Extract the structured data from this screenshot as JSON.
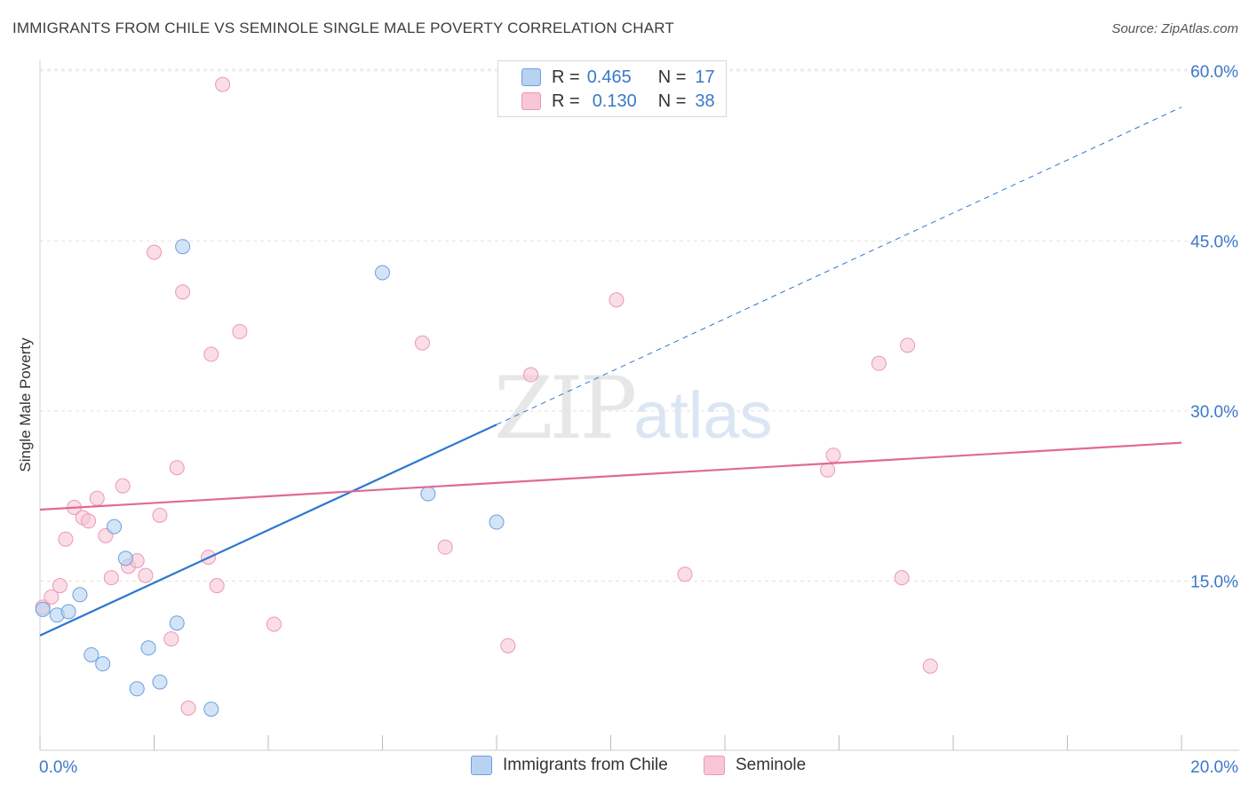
{
  "header": {
    "title": "IMMIGRANTS FROM CHILE VS SEMINOLE SINGLE MALE POVERTY CORRELATION CHART",
    "source": "Source: ZipAtlas.com"
  },
  "legend": {
    "rows": [
      {
        "r_label": "R =",
        "r_value": "0.465",
        "n_label": "N =",
        "n_value": "17"
      },
      {
        "r_label": "R =",
        "r_value": "0.130",
        "n_label": "N =",
        "n_value": "38"
      }
    ]
  },
  "watermark": {
    "zip": "ZIP",
    "atlas": "atlas"
  },
  "colors": {
    "blue_fill": "#b8d2f2",
    "blue_stroke": "#6a9fe0",
    "blue_line": "#2c78d0",
    "pink_fill": "#f8c6d6",
    "pink_stroke": "#ec98b4",
    "pink_line": "#e06a95",
    "axis_label": "#3b78c9"
  },
  "chart_data": {
    "type": "scatter",
    "title": "IMMIGRANTS FROM CHILE VS SEMINOLE SINGLE MALE POVERTY CORRELATION CHART",
    "ylabel": "Single Male Poverty",
    "xlabel": "",
    "xlim": [
      0,
      20
    ],
    "ylim": [
      0,
      62
    ],
    "x_tick_labels": [
      "0.0%",
      "20.0%"
    ],
    "y_ticks": [
      15,
      30,
      45,
      60
    ],
    "y_tick_labels": [
      "15.0%",
      "30.0%",
      "45.0%",
      "60.0%"
    ],
    "grid": true,
    "legend_position": "top-center",
    "series": [
      {
        "name": "Immigrants from Chile",
        "color": "#6a9fe0",
        "x": [
          0.05,
          0.3,
          0.5,
          0.7,
          0.9,
          1.1,
          1.3,
          1.5,
          1.7,
          1.9,
          2.1,
          2.4,
          2.5,
          3.0,
          6.0,
          6.8,
          8.0
        ],
        "y": [
          12.5,
          12.0,
          12.3,
          13.8,
          8.5,
          7.7,
          19.8,
          17.0,
          5.5,
          9.1,
          6.1,
          11.3,
          44.5,
          3.7,
          42.2,
          22.7,
          20.2
        ],
        "trend": {
          "x": [
            0,
            8.0
          ],
          "y": [
            10.2,
            28.8
          ],
          "dashed_extension": {
            "x": [
              8.0,
              20.0
            ],
            "y": [
              28.8,
              56.8
            ]
          }
        }
      },
      {
        "name": "Seminole",
        "color": "#ec98b4",
        "x": [
          0.05,
          0.2,
          0.35,
          0.45,
          0.6,
          0.75,
          0.85,
          1.0,
          1.15,
          1.25,
          1.45,
          1.55,
          1.7,
          1.85,
          2.0,
          2.1,
          2.3,
          2.4,
          2.5,
          2.6,
          2.95,
          3.0,
          3.1,
          3.2,
          3.5,
          4.1,
          6.7,
          7.1,
          8.2,
          8.6,
          10.1,
          11.3,
          13.8,
          13.9,
          14.7,
          15.1,
          15.2,
          15.6
        ],
        "y": [
          12.7,
          13.6,
          14.6,
          18.7,
          21.5,
          20.6,
          20.3,
          22.3,
          19.0,
          15.3,
          23.4,
          16.3,
          16.8,
          15.5,
          44.0,
          20.8,
          9.9,
          25.0,
          40.5,
          3.8,
          17.1,
          35.0,
          14.6,
          58.8,
          37.0,
          11.2,
          36.0,
          18.0,
          9.3,
          33.2,
          39.8,
          15.6,
          24.8,
          26.1,
          34.2,
          15.3,
          35.8,
          7.5
        ],
        "trend": {
          "x": [
            0,
            20.0
          ],
          "y": [
            21.3,
            27.2
          ]
        }
      }
    ]
  }
}
